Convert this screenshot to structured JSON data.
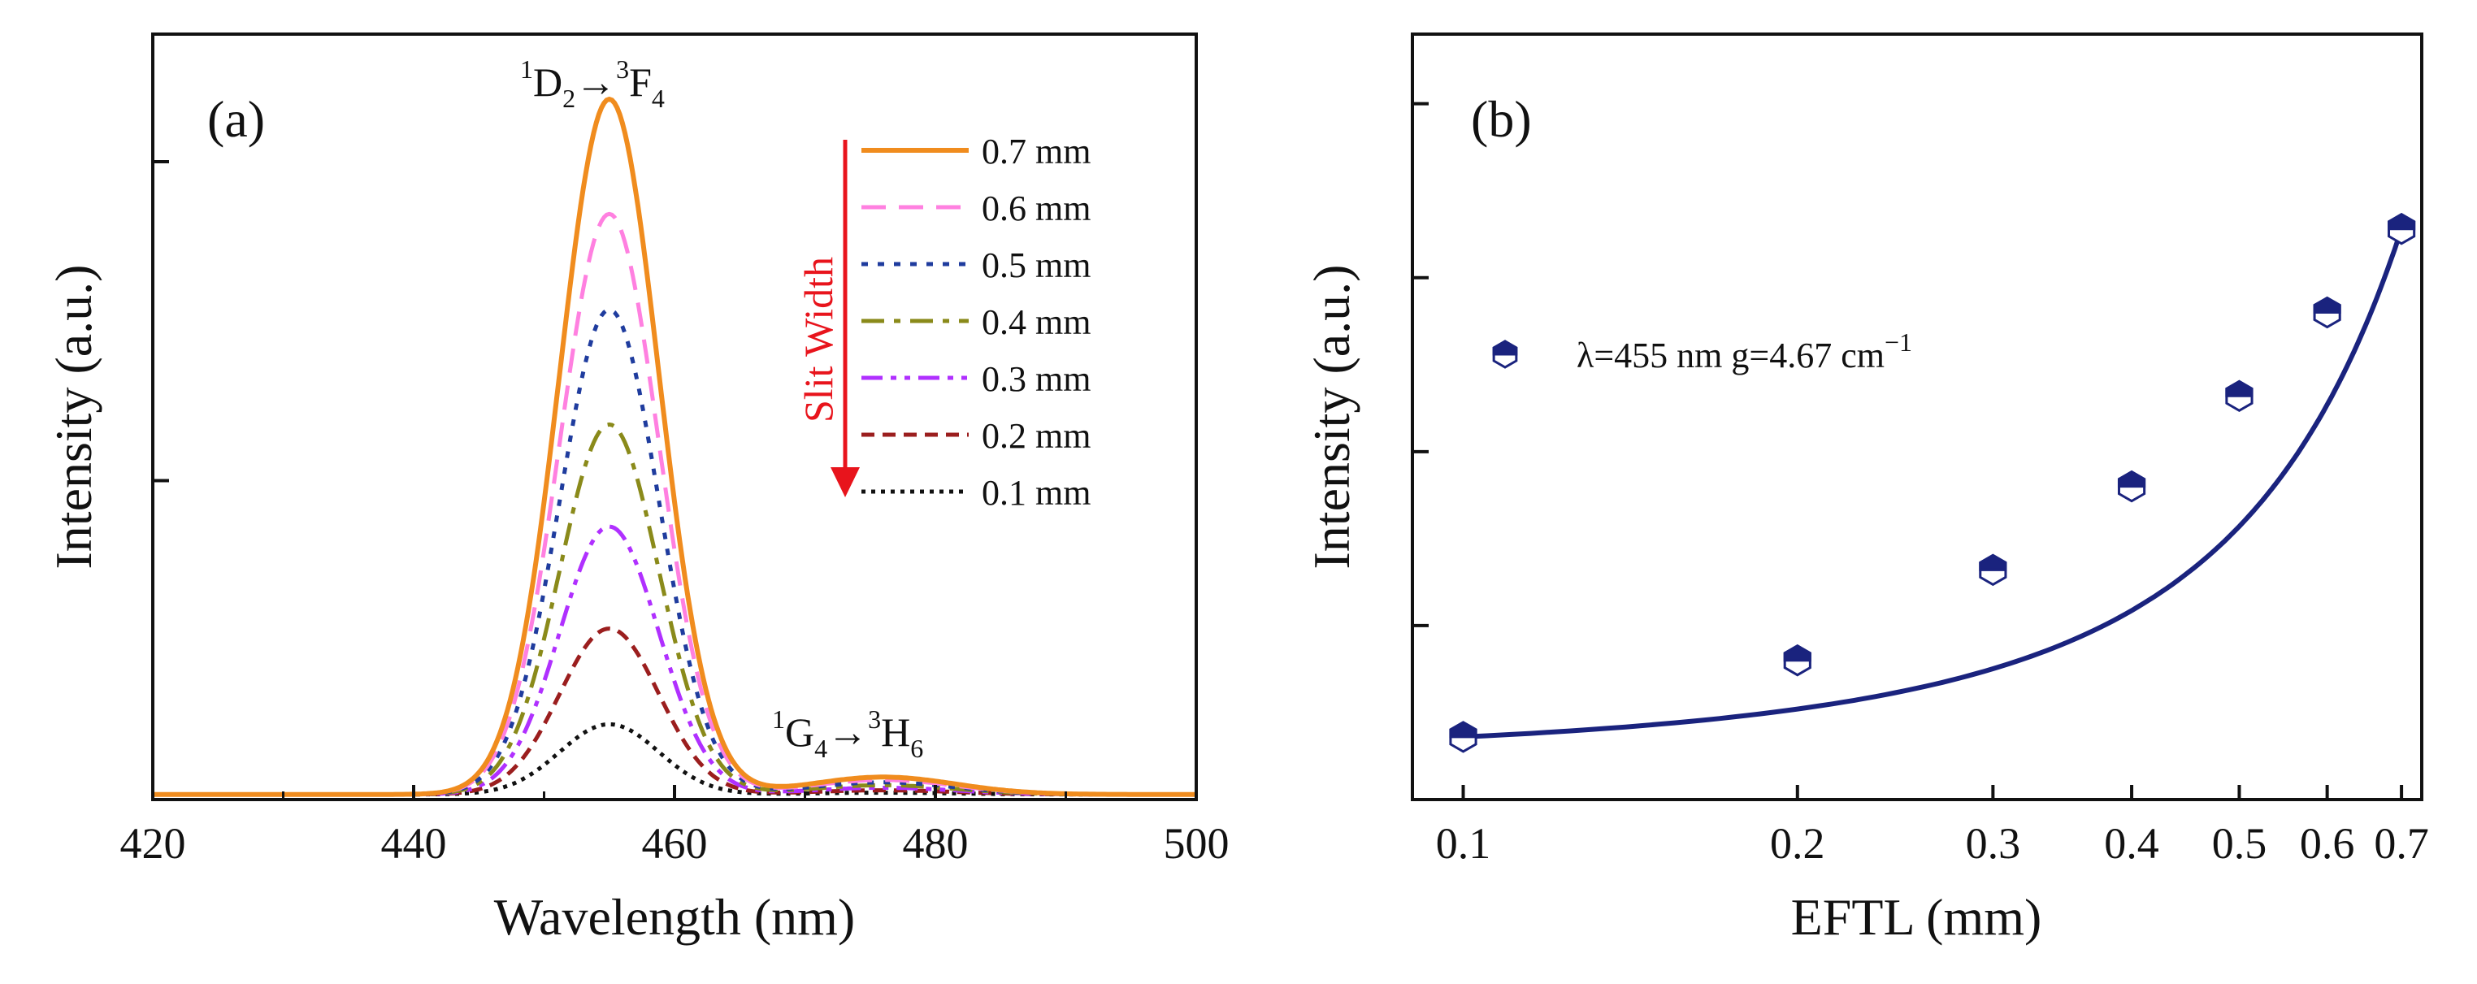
{
  "figure": {
    "panels": [
      "(a)",
      "(b)"
    ]
  },
  "chart_data": [
    {
      "type": "line",
      "panel": "(a)",
      "xlabel": "Wavelength (nm)",
      "ylabel": "Intensity (a.u.)",
      "xlim": [
        420,
        500
      ],
      "ylim": [
        0,
        1.2
      ],
      "xticks": [
        "420",
        "440",
        "460",
        "480",
        "500"
      ],
      "y_tick_values": [
        0.5,
        1.0
      ],
      "y_tick_labels_shown": false,
      "annotations": [
        {
          "base": "1D2→3F4",
          "parts": [
            "1",
            "D",
            "2",
            "→",
            "3",
            "F",
            "4"
          ]
        },
        {
          "base": "1G4→3H6",
          "parts": [
            "1",
            "G",
            "4",
            "→",
            "3",
            "H",
            "6"
          ]
        }
      ],
      "legend_arrow_label": "Slit Width",
      "legend_position": "top-right",
      "peak_model": {
        "main_center_nm": 455,
        "main_sigma_nm": 3.8,
        "secondary_center_nm": 476,
        "secondary_sigma_nm": 5.5,
        "secondary_ratio": 0.025,
        "baseline": 0.008
      },
      "series": [
        {
          "name": "0.7 mm",
          "peak": 1.09,
          "color": "#f08c1e",
          "dash": "solid"
        },
        {
          "name": "0.6 mm",
          "peak": 0.91,
          "color": "#ff80e0",
          "dash": "long-dash"
        },
        {
          "name": "0.5 mm",
          "peak": 0.76,
          "color": "#1f3c9e",
          "dash": "dot"
        },
        {
          "name": "0.4 mm",
          "peak": 0.58,
          "color": "#8a8a1a",
          "dash": "dash-dot"
        },
        {
          "name": "0.3 mm",
          "peak": 0.42,
          "color": "#b030ff",
          "dash": "dash-dot-dot"
        },
        {
          "name": "0.2 mm",
          "peak": 0.26,
          "color": "#9b1e1e",
          "dash": "short-dash"
        },
        {
          "name": "0.1 mm",
          "peak": 0.11,
          "color": "#111111",
          "dash": "fine-dot"
        }
      ]
    },
    {
      "type": "scatter",
      "panel": "(b)",
      "xlabel": "EFTL (mm)",
      "ylabel": "Intensity (a.u.)",
      "xscale": "log",
      "xlim": [
        0.09,
        0.73
      ],
      "ylim": [
        0,
        1.1
      ],
      "xticks": [
        "0.1",
        "0.2",
        "0.3",
        "0.4",
        "0.5",
        "0.6",
        "0.7"
      ],
      "y_tick_values": [
        0.25,
        0.5,
        0.75,
        1.0
      ],
      "y_tick_labels_shown": false,
      "legend": {
        "text": "λ=455 nm  g=4.67 cm",
        "superscript": "−1",
        "position": "upper-left"
      },
      "color": "#1a237e",
      "x": [
        0.1,
        0.2,
        0.3,
        0.4,
        0.5,
        0.6,
        0.7
      ],
      "y": [
        0.09,
        0.2,
        0.33,
        0.45,
        0.58,
        0.7,
        0.82
      ],
      "fit": "exponential"
    }
  ]
}
